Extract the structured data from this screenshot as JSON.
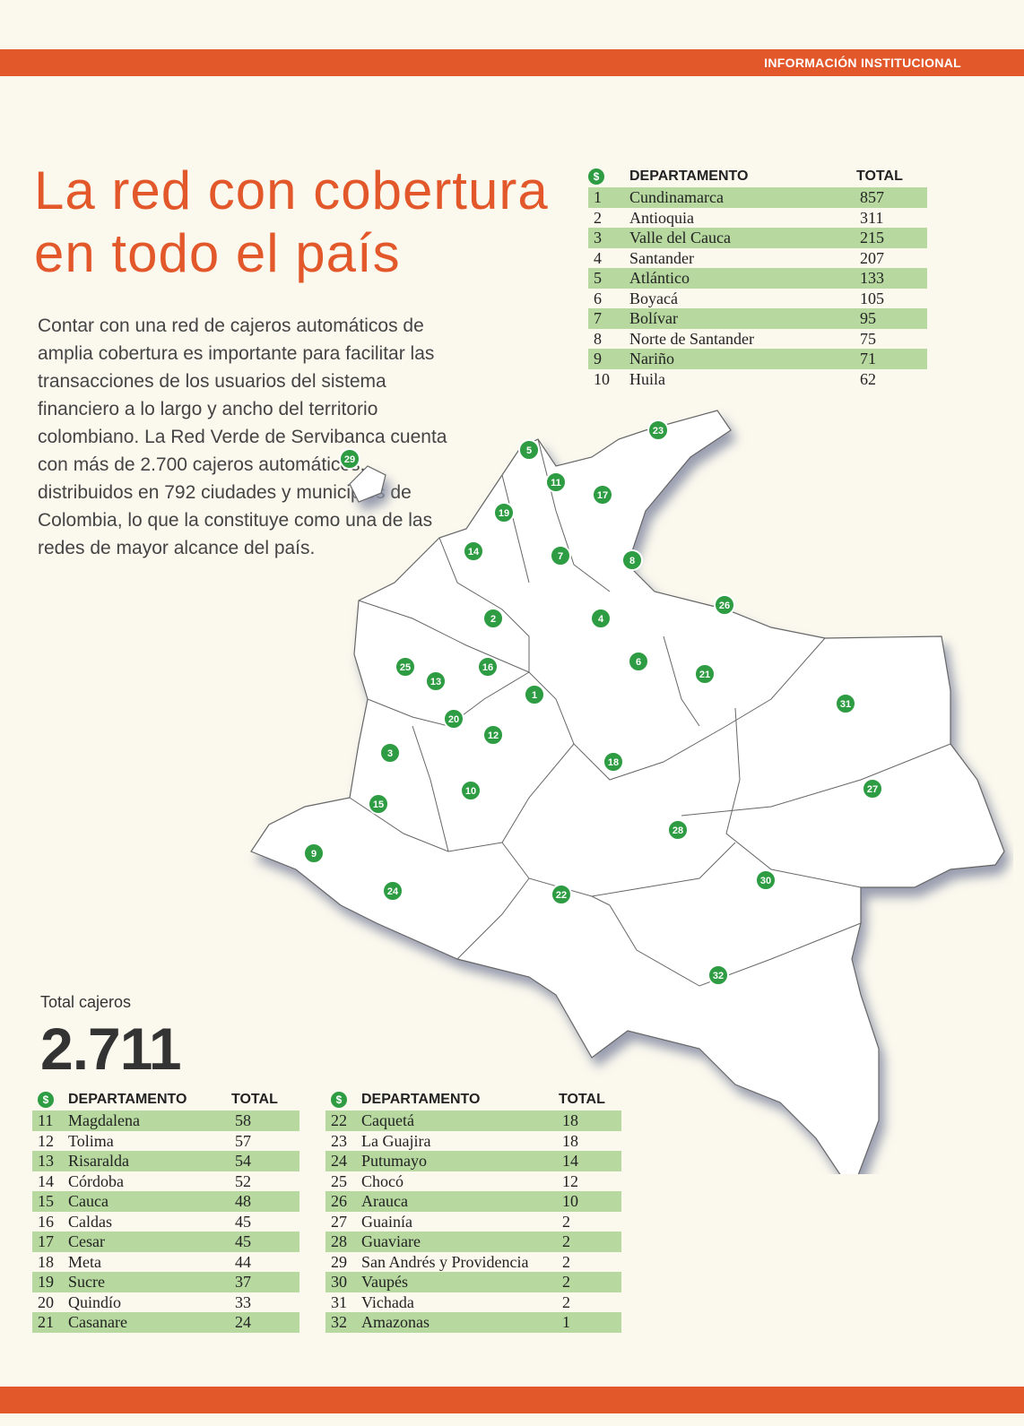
{
  "header": {
    "section_label": "INFORMACIÓN INSTITUCIONAL"
  },
  "article": {
    "title_line1": "La red con cobertura",
    "title_line2": "en todo el país",
    "body": "Contar con una red de cajeros automáticos de amplia cobertura es importante para facilitar las transacciones de los usuarios del sistema financiero a lo largo y ancho del territorio colombiano. La Red Verde de Servibanca cuenta con más de 2.700 cajeros automáticos, distribuidos en 792 ciudades y municipios de Colombia, lo que la constituye como una de las redes de mayor alcance del país."
  },
  "totals": {
    "label": "Total cajeros",
    "value": "2.711"
  },
  "table_headers": {
    "dept": "DEPARTAMENTO",
    "total": "TOTAL"
  },
  "table_top": [
    {
      "n": "1",
      "name": "Cundinamarca",
      "total": "857"
    },
    {
      "n": "2",
      "name": "Antioquia",
      "total": "311"
    },
    {
      "n": "3",
      "name": "Valle del Cauca",
      "total": "215"
    },
    {
      "n": "4",
      "name": "Santander",
      "total": "207"
    },
    {
      "n": "5",
      "name": "Atlántico",
      "total": "133"
    },
    {
      "n": "6",
      "name": "Boyacá",
      "total": "105"
    },
    {
      "n": "7",
      "name": "Bolívar",
      "total": "95"
    },
    {
      "n": "8",
      "name": "Norte de Santander",
      "total": "75"
    },
    {
      "n": "9",
      "name": "Nariño",
      "total": "71"
    },
    {
      "n": "10",
      "name": "Huila",
      "total": "62"
    }
  ],
  "table_bottom_left": [
    {
      "n": "11",
      "name": "Magdalena",
      "total": "58"
    },
    {
      "n": "12",
      "name": "Tolima",
      "total": "57"
    },
    {
      "n": "13",
      "name": "Risaralda",
      "total": "54"
    },
    {
      "n": "14",
      "name": "Córdoba",
      "total": "52"
    },
    {
      "n": "15",
      "name": "Cauca",
      "total": "48"
    },
    {
      "n": "16",
      "name": "Caldas",
      "total": "45"
    },
    {
      "n": "17",
      "name": "Cesar",
      "total": "45"
    },
    {
      "n": "18",
      "name": "Meta",
      "total": "44"
    },
    {
      "n": "19",
      "name": "Sucre",
      "total": "37"
    },
    {
      "n": "20",
      "name": "Quindío",
      "total": "33"
    },
    {
      "n": "21",
      "name": "Casanare",
      "total": "24"
    }
  ],
  "table_bottom_right": [
    {
      "n": "22",
      "name": "Caquetá",
      "total": "18"
    },
    {
      "n": "23",
      "name": "La Guajira",
      "total": "18"
    },
    {
      "n": "24",
      "name": "Putumayo",
      "total": "14"
    },
    {
      "n": "25",
      "name": "Chocó",
      "total": "12"
    },
    {
      "n": "26",
      "name": "Arauca",
      "total": "10"
    },
    {
      "n": "27",
      "name": "Guainía",
      "total": "2"
    },
    {
      "n": "28",
      "name": "Guaviare",
      "total": "2"
    },
    {
      "n": "29",
      "name": "San Andrés y Providencia",
      "total": "2"
    },
    {
      "n": "30",
      "name": "Vaupés",
      "total": "2"
    },
    {
      "n": "31",
      "name": "Vichada",
      "total": "2"
    },
    {
      "n": "32",
      "name": "Amazonas",
      "total": "1"
    }
  ],
  "map_markers": [
    "1",
    "2",
    "3",
    "4",
    "5",
    "6",
    "7",
    "8",
    "9",
    "10",
    "11",
    "12",
    "13",
    "14",
    "15",
    "16",
    "17",
    "18",
    "19",
    "20",
    "21",
    "22",
    "23",
    "24",
    "25",
    "26",
    "27",
    "28",
    "29",
    "30",
    "31",
    "32"
  ],
  "colors": {
    "accent": "#e2582a",
    "badge": "#2e9c42",
    "row_highlight": "#b7d9a0",
    "paper": "#fbf9ee"
  },
  "icons": {
    "table_icon": "servibanca-logo-icon"
  }
}
